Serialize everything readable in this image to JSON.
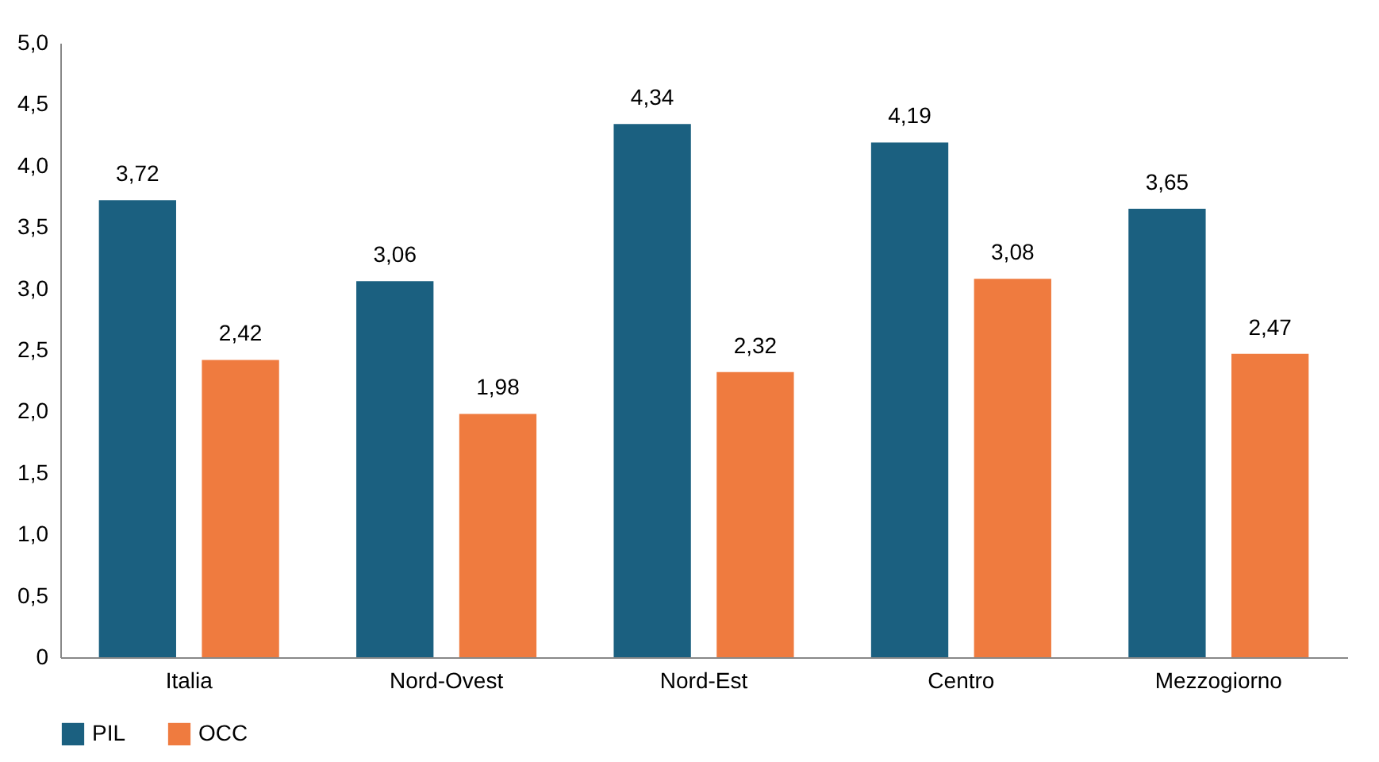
{
  "chart_data": {
    "type": "bar",
    "categories": [
      "Italia",
      "Nord-Ovest",
      "Nord-Est",
      "Centro",
      "Mezzogiorno"
    ],
    "series": [
      {
        "name": "PIL",
        "color": "#1b6080",
        "values": [
          3.72,
          3.06,
          4.34,
          4.19,
          3.65
        ],
        "value_labels": [
          "3,72",
          "3,06",
          "4,34",
          "4,19",
          "3,65"
        ]
      },
      {
        "name": "OCC",
        "color": "#ef7b3f",
        "values": [
          2.42,
          1.98,
          2.32,
          3.08,
          2.47
        ],
        "value_labels": [
          "2,42",
          "1,98",
          "2,32",
          "3,08",
          "2,47"
        ]
      }
    ],
    "ylim": [
      0,
      5
    ],
    "yticks": [
      0,
      {
        "value": 0.5,
        "label": "0,5"
      },
      {
        "value": 1,
        "label": "1,0"
      },
      {
        "value": 1.5,
        "label": "1,5"
      },
      {
        "value": 2,
        "label": "2,0"
      },
      {
        "value": 2.5,
        "label": "2,5"
      },
      {
        "value": 3,
        "label": "3,0"
      },
      {
        "value": 3.5,
        "label": "3,5"
      },
      {
        "value": 4,
        "label": "4,0"
      },
      {
        "value": 4.5,
        "label": "4,5"
      },
      {
        "value": 5,
        "label": "5,0"
      }
    ],
    "grid": false,
    "legend": "bottom"
  }
}
